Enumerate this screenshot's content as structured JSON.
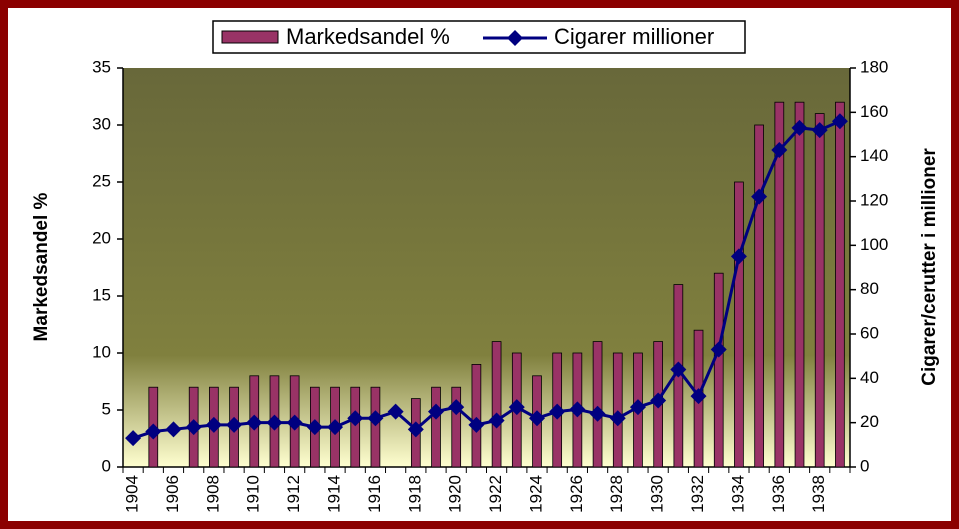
{
  "chart_data": {
    "type": "bar",
    "categories": [
      "1904",
      null,
      "1906",
      null,
      "1908",
      null,
      "1910",
      null,
      "1912",
      null,
      "1914",
      null,
      "1916",
      null,
      "1918",
      null,
      "1920",
      null,
      "1922",
      null,
      "1924",
      null,
      "1926",
      null,
      "1928",
      null,
      "1930",
      null,
      "1932",
      null,
      "1934",
      null,
      "1936",
      null,
      "1938",
      null
    ],
    "series": [
      {
        "name": "Markedsandel %",
        "color": "#993366",
        "type": "bar",
        "axis": "y",
        "values": [
          null,
          7,
          null,
          7,
          7,
          7,
          8,
          8,
          8,
          7,
          7,
          7,
          7,
          null,
          6,
          7,
          7,
          9,
          11,
          10,
          8,
          10,
          10,
          11,
          10,
          10,
          11,
          16,
          12,
          17,
          25,
          30,
          32,
          32,
          31,
          32
        ]
      },
      {
        "name": "Cigarer millioner",
        "color": "#000080",
        "type": "line",
        "axis": "y2",
        "values": [
          13,
          16,
          17,
          18,
          19,
          19,
          20,
          20,
          20,
          18,
          18,
          22,
          22,
          25,
          17,
          25,
          27,
          19,
          21,
          27,
          22,
          25,
          26,
          24,
          22,
          27,
          30,
          44,
          32,
          53,
          95,
          122,
          143,
          153,
          152,
          156
        ]
      }
    ],
    "ylabel": "Markedsandel %",
    "y2label": "Cigarer/cerutter i millioner",
    "ylim": [
      0,
      35
    ],
    "yticks": [
      0,
      5,
      10,
      15,
      20,
      25,
      30,
      35
    ],
    "y2lim": [
      0,
      180
    ],
    "y2ticks": [
      0,
      20,
      40,
      60,
      80,
      100,
      120,
      140,
      160,
      180
    ],
    "legend": "top"
  }
}
